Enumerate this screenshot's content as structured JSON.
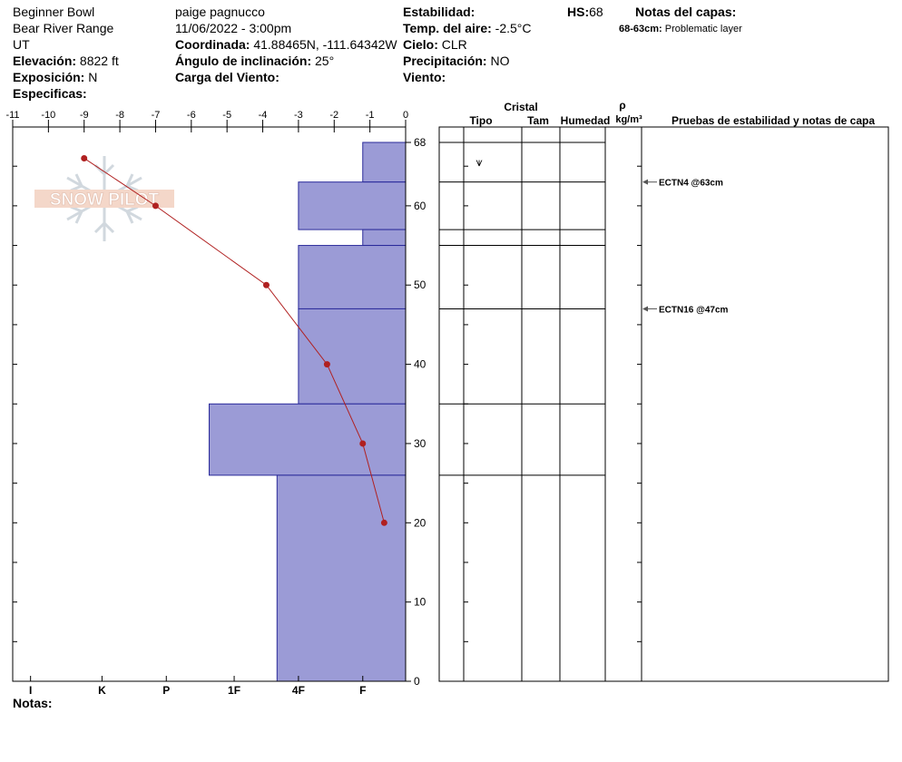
{
  "header": {
    "location": "Beginner Bowl",
    "range": "Bear River Range",
    "state": "UT",
    "elevation_label": "Elevación:",
    "elevation_value": "8822 ft",
    "aspect_label": "Exposición:",
    "aspect_value": "N",
    "specifics_label": "Especificas:",
    "observer": "paige pagnucco",
    "datetime": "11/06/2022 - 3:00pm",
    "coord_label": "Coordinada:",
    "coord_value": "41.88465N, -111.64342W",
    "slope_label": "Ángulo de inclinación:",
    "slope_value": "25°",
    "wind_load_label": "Carga del Viento:",
    "stability_label": "Estabilidad:",
    "air_temp_label": "Temp. del aire:",
    "air_temp_value": "-2.5°C",
    "sky_label": "Cielo:",
    "sky_value": "CLR",
    "precip_label": "Precipitación:",
    "precip_value": "NO",
    "wind_label": "Viento:",
    "hs_label": "HS:",
    "hs_value": "68",
    "layer_notes_label": "Notas del capas:",
    "layer_note_depth": "68-63cm:",
    "layer_note_text": "Problematic layer"
  },
  "notes_label": "Notas:",
  "watermark": "SNOW PILOT",
  "right_table": {
    "crystal_label": "Cristal",
    "type_label": "Tipo",
    "size_label": "Tam",
    "moisture_label": "Humedad",
    "density_symbol": "ρ",
    "density_unit": "kg/m³",
    "tests_label": "Pruebas de estabilidad y notas de capa",
    "crystal_symbol": "⩛",
    "tests": [
      {
        "depth": 63,
        "text": "ECTN4 @63cm"
      },
      {
        "depth": 47,
        "text": "ECTN16 @47cm"
      }
    ]
  },
  "colors": {
    "layer_fill": "#9b9bd6",
    "layer_stroke": "#2a2a9a",
    "temp_line": "#b02020"
  },
  "chart_data": {
    "type": "area",
    "temp_axis": {
      "ticks": [
        -11,
        -10,
        -9,
        -8,
        -7,
        -6,
        -5,
        -4,
        -3,
        -2,
        -1,
        0
      ],
      "range": [
        -11,
        0
      ]
    },
    "depth_axis": {
      "ticks": [
        0,
        10,
        20,
        30,
        40,
        50,
        60,
        68
      ],
      "range": [
        0,
        68
      ],
      "unit": "cm"
    },
    "hardness_labels": [
      "I",
      "K",
      "P",
      "1F",
      "4F",
      "F"
    ],
    "hardness_label_temps": [
      -10.5,
      -8.5,
      -6.7,
      -4.8,
      -3,
      -1.2
    ],
    "temperature_profile": [
      {
        "temp": -9,
        "depth": 66
      },
      {
        "temp": -7,
        "depth": 60
      },
      {
        "temp": -3.9,
        "depth": 50
      },
      {
        "temp": -2.2,
        "depth": 40
      },
      {
        "temp": -1.2,
        "depth": 30
      },
      {
        "temp": -0.6,
        "depth": 20
      }
    ],
    "layers": [
      {
        "top": 68,
        "bottom": 63,
        "hardness_temp": -1.2
      },
      {
        "top": 63,
        "bottom": 57,
        "hardness_temp": -3
      },
      {
        "top": 57,
        "bottom": 55,
        "hardness_temp": -1.2
      },
      {
        "top": 55,
        "bottom": 47,
        "hardness_temp": -3
      },
      {
        "top": 47,
        "bottom": 35,
        "hardness_temp": -3
      },
      {
        "top": 35,
        "bottom": 26,
        "hardness_temp": -5.5
      },
      {
        "top": 26,
        "bottom": 0,
        "hardness_temp": -3.6
      }
    ]
  }
}
